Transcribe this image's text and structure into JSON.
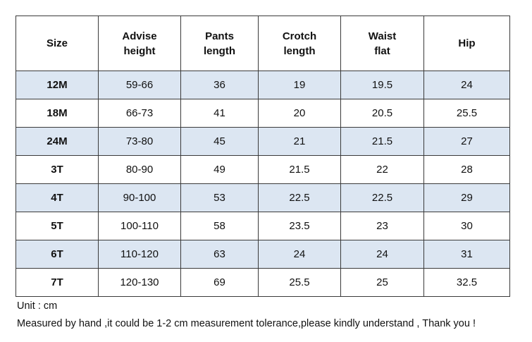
{
  "table": {
    "headers": [
      "Size",
      "Advise\nheight",
      "Pants\nlength",
      "Crotch\nlength",
      "Waist\nflat",
      "Hip"
    ],
    "rows": [
      [
        "12M",
        "59-66",
        "36",
        "19",
        "19.5",
        "24"
      ],
      [
        "18M",
        "66-73",
        "41",
        "20",
        "20.5",
        "25.5"
      ],
      [
        "24M",
        "73-80",
        "45",
        "21",
        "21.5",
        "27"
      ],
      [
        "3T",
        "80-90",
        "49",
        "21.5",
        "22",
        "28"
      ],
      [
        "4T",
        "90-100",
        "53",
        "22.5",
        "22.5",
        "29"
      ],
      [
        "5T",
        "100-110",
        "58",
        "23.5",
        "23",
        "30"
      ],
      [
        "6T",
        "110-120",
        "63",
        "24",
        "24",
        "31"
      ],
      [
        "7T",
        "120-130",
        "69",
        "25.5",
        "25",
        "32.5"
      ]
    ],
    "shaded_row_color": "#dce6f2"
  },
  "notes": {
    "unit": "Unit : cm",
    "disclaimer": "Measured by hand ,it could be 1-2 cm measurement tolerance,please kindly understand , Thank you !"
  }
}
